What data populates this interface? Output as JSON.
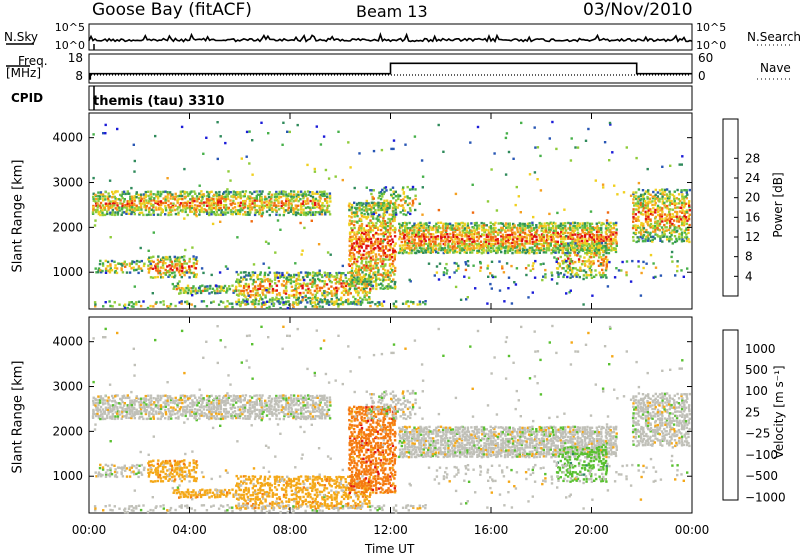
{
  "header": {
    "station": "Goose Bay (fitACF)",
    "beam": "Beam 13",
    "date": "03/Nov/2010"
  },
  "left_labels": {
    "nsky": "N.Sky",
    "freq": "Freq.",
    "freq_unit": "[MHz]",
    "cpid": "CPID"
  },
  "right_labels": {
    "nsearch": "N.Search",
    "nave": "Nave"
  },
  "cpid_text": "themis (tau) 3310",
  "colors": {
    "power": [
      "#1b1bd8",
      "#2856b4",
      "#2f8a5b",
      "#47b04a",
      "#8fcc3a",
      "#f0d020",
      "#f5a020",
      "#f06a10",
      "#e01010"
    ],
    "velocity": [
      "#1b2fd0",
      "#2d6cc0",
      "#2e8a5e",
      "#59c030",
      "#c0c0b8",
      "#f4a818",
      "#f57a10",
      "#e01515"
    ]
  },
  "chart_data": [
    {
      "type": "line",
      "name": "noise",
      "y_left_ticks": [
        "10^5",
        "10^0"
      ],
      "y_right_ticks": [
        "10^5",
        "10^0"
      ],
      "x_range": [
        0,
        24
      ]
    },
    {
      "type": "line",
      "name": "frequency-nave",
      "y_left_ticks": [
        "18",
        "8"
      ],
      "y_right_ticks": [
        "60",
        "0"
      ],
      "series": [
        {
          "x": [
            0.0,
            0.05,
            0.05,
            12.0,
            12.0,
            21.8,
            21.8,
            24.0
          ],
          "y": [
            8.0,
            8.0,
            10.5,
            10.5,
            15.5,
            15.5,
            10.5,
            10.5
          ]
        }
      ]
    },
    {
      "type": "heatmap",
      "ylabel": "Slant Range [km]",
      "xlabel": "",
      "x_ticks": [
        "00:00",
        "04:00",
        "08:00",
        "12:00",
        "16:00",
        "20:00",
        "00:00"
      ],
      "y_ticks": [
        1000,
        2000,
        3000,
        4000
      ],
      "ylim": [
        180,
        4550
      ],
      "colorbar": {
        "label": "Power [dB]",
        "ticks": [
          "4",
          "8",
          "12",
          "16",
          "20",
          "24",
          "28"
        ],
        "range": [
          0,
          30
        ]
      }
    },
    {
      "type": "heatmap",
      "ylabel": "Slant Range [km]",
      "xlabel": "Time UT",
      "x_ticks": [
        "00:00",
        "04:00",
        "08:00",
        "12:00",
        "16:00",
        "20:00",
        "00:00"
      ],
      "y_ticks": [
        1000,
        2000,
        3000,
        4000
      ],
      "ylim": [
        180,
        4550
      ],
      "colorbar": {
        "label": "Velocity [m s⁻¹]",
        "ticks": [
          "1000",
          "500",
          "100",
          "25",
          "−25",
          "−100",
          "−500",
          "−1000"
        ]
      }
    }
  ]
}
